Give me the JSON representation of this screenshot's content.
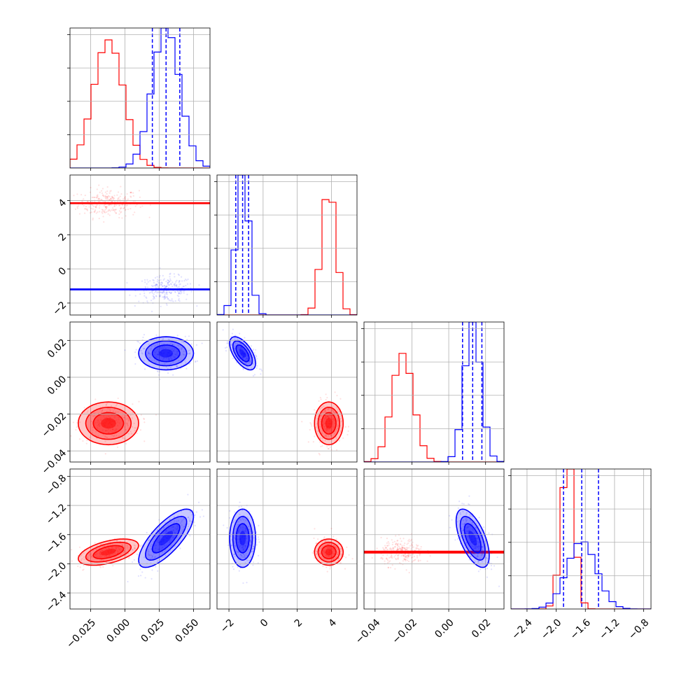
{
  "chart_data": {
    "type": "corner",
    "title": "",
    "grid": true,
    "parameters": [
      {
        "range": [
          -0.04,
          0.062
        ],
        "ticks": [
          "−0.025",
          "0.000",
          "0.025",
          "0.050"
        ],
        "tick_values": [
          -0.025,
          0.0,
          0.025,
          0.05
        ]
      },
      {
        "range": [
          -2.7,
          5.5
        ],
        "ticks": [
          "−2",
          "0",
          "2",
          "4"
        ],
        "tick_values": [
          -2,
          0,
          2,
          4
        ]
      },
      {
        "range": [
          -0.046,
          0.03
        ],
        "ticks": [
          "−0.04",
          "−0.02",
          "0.00",
          "0.02"
        ],
        "tick_values": [
          -0.04,
          -0.02,
          0.0,
          0.02
        ]
      },
      {
        "range": [
          -2.62,
          -0.7
        ],
        "ticks": [
          "−2.4",
          "−2.0",
          "−1.6",
          "−1.2",
          "−0.8"
        ],
        "tick_values": [
          -2.4,
          -2.0,
          -1.6,
          -1.2,
          -0.8
        ]
      }
    ],
    "series": [
      {
        "color": "#ff0000",
        "means": [
          -0.012,
          3.85,
          -0.025,
          -1.84
        ],
        "sds": [
          0.011,
          0.42,
          0.0058,
          0.09
        ],
        "correlations": [
          [
            0,
            1,
            0.0
          ],
          [
            0,
            2,
            0.0
          ],
          [
            0,
            3,
            0.5
          ],
          [
            1,
            2,
            0.0
          ],
          [
            1,
            3,
            0.0
          ],
          [
            2,
            3,
            0.0
          ]
        ],
        "quantile_lines": []
      },
      {
        "color": "#0000ff",
        "means": [
          0.03,
          -1.2,
          0.013,
          -1.65
        ],
        "sds": [
          0.01,
          0.38,
          0.0045,
          0.2
        ],
        "correlations": [
          [
            0,
            1,
            0.0
          ],
          [
            0,
            2,
            0.0
          ],
          [
            0,
            3,
            0.75
          ],
          [
            1,
            2,
            -0.6
          ],
          [
            1,
            3,
            0.0
          ],
          [
            2,
            3,
            -0.6
          ]
        ],
        "quantile_lines": [
          [
            0.02,
            0.03,
            0.04
          ],
          [
            -1.6,
            -1.2,
            -0.85
          ],
          [
            0.0075,
            0.013,
            0.018
          ],
          [
            -1.9,
            -1.65,
            -1.42
          ]
        ]
      }
    ],
    "diagonal_y_ticks": 4
  }
}
